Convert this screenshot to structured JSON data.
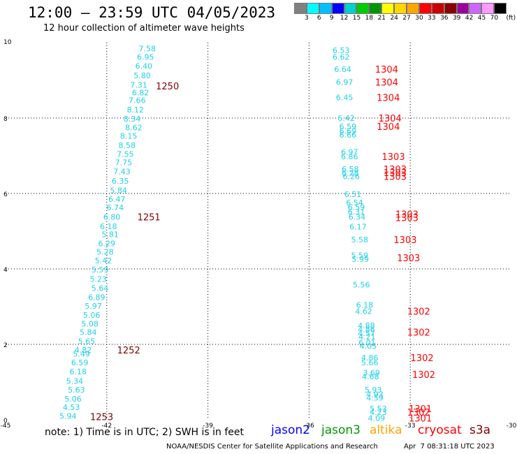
{
  "header": {
    "title": "12:00 – 23:59 UTC 04/05/2023",
    "subtitle": "12 hour collection of altimeter wave heights"
  },
  "colorbar": {
    "colors": [
      "#808080",
      "#00ffff",
      "#00bfff",
      "#0000ff",
      "#00cfcf",
      "#00cc00",
      "#009600",
      "#ffff00",
      "#ffd700",
      "#ffa500",
      "#ff0000",
      "#cc0000",
      "#8b0000",
      "#990099",
      "#cc66ff",
      "#ff99ff",
      "#000000"
    ],
    "labels": [
      "3",
      "6",
      "9",
      "12",
      "15",
      "18",
      "21",
      "24",
      "27",
      "30",
      "33",
      "36",
      "39",
      "42",
      "45",
      "70",
      "(ft)"
    ]
  },
  "chart_data": {
    "type": "scatter",
    "title": "12:00 – 23:59 UTC 04/05/2023",
    "subtitle": "12 hour collection of altimeter wave heights",
    "xlim": [
      -45,
      -30
    ],
    "ylim": [
      0,
      10
    ],
    "x_ticks": [
      "-45",
      "-42",
      "-39",
      "-36",
      "-33",
      "-30"
    ],
    "y_ticks": [
      "0",
      "2",
      "4",
      "6",
      "8",
      "10"
    ],
    "grid": true,
    "legend": "bottom",
    "swh_colors": {
      "cyan": "#00bfff",
      "bright_cyan": "#1fe5e5"
    },
    "track_color": "#1fd0e6",
    "time_colors": {
      "cryosat": "#ff0000",
      "s3a": "#800000"
    },
    "swh_points": [
      {
        "x": -40.8,
        "y": 9.84,
        "v": "7.58"
      },
      {
        "x": -40.85,
        "y": 9.62,
        "v": "6.95"
      },
      {
        "x": -40.9,
        "y": 9.38,
        "v": "6.40"
      },
      {
        "x": -40.95,
        "y": 9.13,
        "v": "5.80"
      },
      {
        "x": -41.05,
        "y": 8.88,
        "v": "7.31"
      },
      {
        "x": -41.0,
        "y": 8.68,
        "v": "6.82"
      },
      {
        "x": -41.1,
        "y": 8.47,
        "v": "7.66"
      },
      {
        "x": -41.15,
        "y": 8.22,
        "v": "8.12"
      },
      {
        "x": -41.25,
        "y": 7.98,
        "v": "8.34"
      },
      {
        "x": -41.2,
        "y": 7.75,
        "v": "8.62"
      },
      {
        "x": -41.35,
        "y": 7.53,
        "v": "8.15"
      },
      {
        "x": -41.4,
        "y": 7.28,
        "v": "8.58"
      },
      {
        "x": -41.45,
        "y": 7.05,
        "v": "7.55"
      },
      {
        "x": -41.5,
        "y": 6.82,
        "v": "7.75"
      },
      {
        "x": -41.55,
        "y": 6.58,
        "v": "7.43"
      },
      {
        "x": -41.6,
        "y": 6.33,
        "v": "6.35"
      },
      {
        "x": -41.65,
        "y": 6.08,
        "v": "5.84"
      },
      {
        "x": -41.7,
        "y": 5.85,
        "v": "6.47"
      },
      {
        "x": -41.75,
        "y": 5.63,
        "v": "6.74"
      },
      {
        "x": -41.85,
        "y": 5.38,
        "v": "6.80"
      },
      {
        "x": -41.95,
        "y": 5.13,
        "v": "6.18"
      },
      {
        "x": -41.9,
        "y": 4.92,
        "v": "5.81"
      },
      {
        "x": -42.0,
        "y": 4.68,
        "v": "6.29"
      },
      {
        "x": -42.05,
        "y": 4.45,
        "v": "5.28"
      },
      {
        "x": -42.1,
        "y": 4.22,
        "v": "5.42"
      },
      {
        "x": -42.2,
        "y": 3.98,
        "v": "5.59"
      },
      {
        "x": -42.25,
        "y": 3.73,
        "v": "5.23"
      },
      {
        "x": -42.2,
        "y": 3.49,
        "v": "5.64"
      },
      {
        "x": -42.3,
        "y": 3.25,
        "v": "6.89"
      },
      {
        "x": -42.4,
        "y": 3.02,
        "v": "5.97"
      },
      {
        "x": -42.45,
        "y": 2.78,
        "v": "5.06"
      },
      {
        "x": -42.5,
        "y": 2.55,
        "v": "5.08"
      },
      {
        "x": -42.55,
        "y": 2.32,
        "v": "5.84"
      },
      {
        "x": -42.6,
        "y": 2.08,
        "v": "5.65"
      },
      {
        "x": -42.7,
        "y": 1.85,
        "v": "4.82"
      },
      {
        "x": -42.75,
        "y": 1.75,
        "v": "5.49"
      },
      {
        "x": -42.8,
        "y": 1.52,
        "v": "6.59"
      },
      {
        "x": -42.85,
        "y": 1.28,
        "v": "6.18"
      },
      {
        "x": -42.95,
        "y": 1.03,
        "v": "5.34"
      },
      {
        "x": -42.9,
        "y": 0.8,
        "v": "5.63"
      },
      {
        "x": -43.0,
        "y": 0.56,
        "v": "5.06"
      },
      {
        "x": -43.05,
        "y": 0.33,
        "v": "4.53"
      },
      {
        "x": -43.15,
        "y": 0.1,
        "v": "5.94"
      },
      {
        "x": -35.05,
        "y": 9.8,
        "v": "6.53"
      },
      {
        "x": -35.05,
        "y": 9.62,
        "v": "6.62"
      },
      {
        "x": -35.0,
        "y": 9.3,
        "v": "6.64"
      },
      {
        "x": -34.95,
        "y": 8.95,
        "v": "6.97"
      },
      {
        "x": -34.95,
        "y": 8.55,
        "v": "6.45"
      },
      {
        "x": -34.9,
        "y": 8.0,
        "v": "6.42"
      },
      {
        "x": -34.85,
        "y": 7.78,
        "v": "6.59"
      },
      {
        "x": -34.85,
        "y": 7.66,
        "v": "6.69"
      },
      {
        "x": -34.85,
        "y": 7.56,
        "v": "6.66"
      },
      {
        "x": -34.8,
        "y": 7.1,
        "v": "6.97"
      },
      {
        "x": -34.8,
        "y": 6.98,
        "v": "6.86"
      },
      {
        "x": -34.78,
        "y": 6.65,
        "v": "6.58"
      },
      {
        "x": -34.78,
        "y": 6.55,
        "v": "6.28"
      },
      {
        "x": -34.75,
        "y": 6.45,
        "v": "6.26"
      },
      {
        "x": -34.7,
        "y": 5.98,
        "v": "6.51"
      },
      {
        "x": -34.65,
        "y": 5.76,
        "v": "6.54"
      },
      {
        "x": -34.6,
        "y": 5.64,
        "v": "6.59"
      },
      {
        "x": -34.6,
        "y": 5.52,
        "v": "6.31"
      },
      {
        "x": -34.58,
        "y": 5.38,
        "v": "6.34"
      },
      {
        "x": -34.55,
        "y": 5.12,
        "v": "6.17"
      },
      {
        "x": -34.5,
        "y": 4.78,
        "v": "5.58"
      },
      {
        "x": -34.5,
        "y": 4.36,
        "v": "5.59"
      },
      {
        "x": -34.48,
        "y": 4.26,
        "v": "5.99"
      },
      {
        "x": -34.45,
        "y": 3.58,
        "v": "5.56"
      },
      {
        "x": -34.35,
        "y": 3.05,
        "v": "6.18"
      },
      {
        "x": -34.38,
        "y": 2.88,
        "v": "4.62"
      },
      {
        "x": -34.3,
        "y": 2.5,
        "v": "4.88"
      },
      {
        "x": -34.3,
        "y": 2.4,
        "v": "4.86"
      },
      {
        "x": -34.3,
        "y": 2.3,
        "v": "4.57"
      },
      {
        "x": -34.28,
        "y": 2.2,
        "v": "4.21"
      },
      {
        "x": -34.28,
        "y": 2.05,
        "v": "6.01"
      },
      {
        "x": -34.25,
        "y": 1.95,
        "v": "4.05"
      },
      {
        "x": -34.2,
        "y": 1.65,
        "v": "4.86"
      },
      {
        "x": -34.2,
        "y": 1.52,
        "v": "5.66"
      },
      {
        "x": -34.15,
        "y": 1.25,
        "v": "3.69"
      },
      {
        "x": -34.18,
        "y": 1.15,
        "v": "4.68"
      },
      {
        "x": -34.1,
        "y": 0.8,
        "v": "5.93"
      },
      {
        "x": -34.05,
        "y": 0.68,
        "v": "4.93"
      },
      {
        "x": -34.05,
        "y": 0.58,
        "v": "4.59"
      },
      {
        "x": -33.95,
        "y": 0.3,
        "v": "5.53"
      },
      {
        "x": -33.95,
        "y": 0.2,
        "v": "4.23"
      },
      {
        "x": -34.0,
        "y": 0.05,
        "v": "4.09"
      }
    ],
    "time_labels": [
      {
        "x": -40.2,
        "y": 8.85,
        "t": "1250",
        "sat": "s3a"
      },
      {
        "x": -40.75,
        "y": 5.38,
        "t": "1251",
        "sat": "s3a"
      },
      {
        "x": -41.35,
        "y": 1.85,
        "t": "1252",
        "sat": "s3a"
      },
      {
        "x": -42.15,
        "y": 0.08,
        "t": "1253",
        "sat": "s3a"
      },
      {
        "x": -33.7,
        "y": 9.3,
        "t": "1304",
        "sat": "cryosat"
      },
      {
        "x": -33.7,
        "y": 8.95,
        "t": "1304",
        "sat": "cryosat"
      },
      {
        "x": -33.65,
        "y": 8.55,
        "t": "1304",
        "sat": "cryosat"
      },
      {
        "x": -33.6,
        "y": 8.0,
        "t": "1304",
        "sat": "cryosat"
      },
      {
        "x": -33.65,
        "y": 7.78,
        "t": "1304",
        "sat": "cryosat"
      },
      {
        "x": -33.5,
        "y": 6.98,
        "t": "1303",
        "sat": "cryosat"
      },
      {
        "x": -33.45,
        "y": 6.65,
        "t": "1303",
        "sat": "cryosat"
      },
      {
        "x": -33.45,
        "y": 6.56,
        "t": "1303",
        "sat": "cryosat"
      },
      {
        "x": -33.45,
        "y": 6.45,
        "t": "1303",
        "sat": "cryosat"
      },
      {
        "x": -33.1,
        "y": 5.45,
        "t": "1303",
        "sat": "cryosat"
      },
      {
        "x": -33.1,
        "y": 5.36,
        "t": "1303",
        "sat": "cryosat"
      },
      {
        "x": -33.15,
        "y": 4.78,
        "t": "1303",
        "sat": "cryosat"
      },
      {
        "x": -33.05,
        "y": 4.3,
        "t": "1303",
        "sat": "cryosat"
      },
      {
        "x": -32.75,
        "y": 2.88,
        "t": "1302",
        "sat": "cryosat"
      },
      {
        "x": -32.75,
        "y": 2.32,
        "t": "1302",
        "sat": "cryosat"
      },
      {
        "x": -32.65,
        "y": 1.65,
        "t": "1302",
        "sat": "cryosat"
      },
      {
        "x": -32.6,
        "y": 1.2,
        "t": "1302",
        "sat": "cryosat"
      },
      {
        "x": -32.7,
        "y": 0.3,
        "t": "1301",
        "sat": "cryosat"
      },
      {
        "x": -32.75,
        "y": 0.2,
        "t": "1302",
        "sat": "cryosat"
      },
      {
        "x": -32.7,
        "y": 0.05,
        "t": "1301",
        "sat": "cryosat"
      }
    ]
  },
  "legend": {
    "note": "note: 1) Time is in UTC; 2) SWH is in feet",
    "satellites": [
      {
        "name": "jason2",
        "color": "#0000ff"
      },
      {
        "name": "jason3",
        "color": "#009600"
      },
      {
        "name": "altika",
        "color": "#ffa500"
      },
      {
        "name": "cryosat",
        "color": "#ff0000"
      },
      {
        "name": "s3a",
        "color": "#800000"
      }
    ]
  },
  "footer": {
    "left": "NOAA/NESDIS Center for Satellite Applications and Research",
    "right": "Apr  7 08:31:18 UTC 2023"
  }
}
